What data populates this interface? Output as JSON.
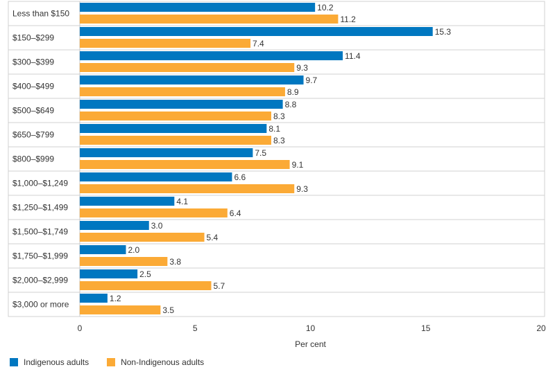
{
  "chart_data": {
    "type": "bar",
    "orientation": "horizontal",
    "categories": [
      "Less than $150",
      "$150–$299",
      "$300–$399",
      "$400–$499",
      "$500–$649",
      "$650–$799",
      "$800–$999",
      "$1,000–$1,249",
      "$1,250–$1,499",
      "$1,500–$1,749",
      "$1,750–$1,999",
      "$2,000–$2,999",
      "$3,000 or more"
    ],
    "series": [
      {
        "name": "Indigenous adults",
        "color": "#0077C0",
        "values": [
          10.2,
          15.3,
          11.4,
          9.7,
          8.8,
          8.1,
          7.5,
          6.6,
          4.1,
          3.0,
          2.0,
          2.5,
          1.2
        ],
        "labels": [
          "10.2",
          "15.3",
          "11.4",
          "9.7",
          "8.8",
          "8.1",
          "7.5",
          "6.6",
          "4.1",
          "3.0",
          "2.0",
          "2.5",
          "1.2"
        ]
      },
      {
        "name": "Non-Indigenous adults",
        "color": "#FBAA36",
        "values": [
          11.2,
          7.4,
          9.3,
          8.9,
          8.3,
          8.3,
          9.1,
          9.3,
          6.4,
          5.4,
          3.8,
          5.7,
          3.5
        ],
        "labels": [
          "11.2",
          "7.4",
          "9.3",
          "8.9",
          "8.3",
          "8.3",
          "9.1",
          "9.3",
          "6.4",
          "5.4",
          "3.8",
          "5.7",
          "3.5"
        ]
      }
    ],
    "xlabel": "Per cent",
    "xlim": [
      0,
      20
    ],
    "xticks": [
      0,
      5,
      10,
      15,
      20
    ],
    "grid": "horizontal row separators",
    "legend_position": "bottom-left"
  }
}
